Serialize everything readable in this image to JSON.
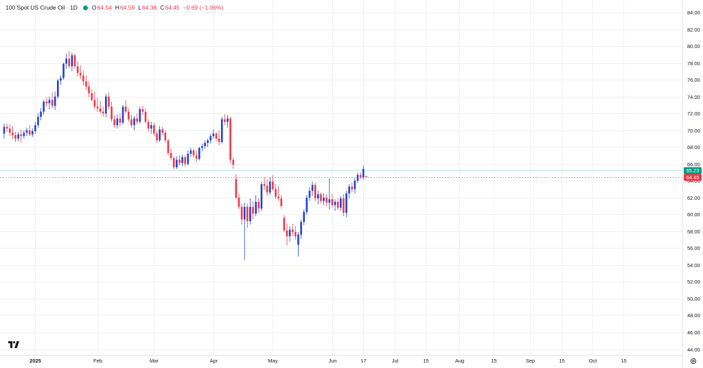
{
  "header": {
    "title": "100 Spot US Crude Oil · 1D",
    "open_label": "O",
    "open": "64.54",
    "high_label": "H",
    "high": "64.59",
    "low_label": "L",
    "low": "64.38",
    "close_label": "C",
    "close": "64.45",
    "change": "−0.69 (−1.06%)"
  },
  "colors": {
    "up": "#1e3fd8",
    "down": "#f23645",
    "grid": "#eef0f3",
    "badge_green": "#089981",
    "badge_red": "#f23645"
  },
  "icons": {
    "logo": "tradingview-logo-icon",
    "settings": "settings-gear-icon"
  },
  "chart_data": {
    "type": "candlestick",
    "y_ticks": [
      "84.00",
      "82.00",
      "80.00",
      "78.00",
      "76.00",
      "74.00",
      "72.00",
      "70.00",
      "68.00",
      "66.00",
      "64.00",
      "62.00",
      "60.00",
      "58.00",
      "56.00",
      "54.00",
      "52.00",
      "50.00",
      "48.00",
      "46.00",
      "44.00"
    ],
    "ylim": [
      43.2,
      85.3
    ],
    "x_labels": [
      {
        "label": "2025",
        "index": 11,
        "bold": true
      },
      {
        "label": "Feb",
        "index": 33
      },
      {
        "label": "Mar",
        "index": 53
      },
      {
        "label": "Apr",
        "index": 74
      },
      {
        "label": "May",
        "index": 95
      },
      {
        "label": "Jun",
        "index": 116
      },
      {
        "label": "17",
        "index": 127
      },
      {
        "label": "Jul",
        "index": 138
      },
      {
        "label": "15",
        "index": 149
      },
      {
        "label": "Aug",
        "index": 161
      },
      {
        "label": "15",
        "index": 173
      },
      {
        "label": "Sep",
        "index": 186
      },
      {
        "label": "15",
        "index": 197
      },
      {
        "label": "Oct",
        "index": 208
      },
      {
        "label": "15",
        "index": 219
      }
    ],
    "price_badges": [
      {
        "label": "65.23",
        "value": 65.23,
        "color": "green"
      },
      {
        "label": "64.45",
        "value": 64.45,
        "color": "red"
      }
    ],
    "candles": [
      [
        0,
        69.6,
        70.8,
        69.0,
        70.4
      ],
      [
        1,
        70.4,
        70.8,
        69.8,
        70.2
      ],
      [
        2,
        70.2,
        70.7,
        69.3,
        69.7
      ],
      [
        3,
        69.7,
        70.5,
        68.9,
        69.4
      ],
      [
        4,
        69.4,
        69.8,
        68.6,
        69.0
      ],
      [
        5,
        69.0,
        69.8,
        68.7,
        69.5
      ],
      [
        6,
        69.5,
        70.1,
        68.5,
        69.3
      ],
      [
        7,
        69.3,
        70.0,
        69.0,
        69.7
      ],
      [
        8,
        69.7,
        70.3,
        69.3,
        70.0
      ],
      [
        9,
        70.0,
        70.6,
        69.3,
        69.5
      ],
      [
        10,
        69.5,
        70.2,
        69.2,
        69.9
      ],
      [
        11,
        69.9,
        71.0,
        69.6,
        70.6
      ],
      [
        12,
        70.6,
        72.0,
        70.3,
        71.6
      ],
      [
        13,
        71.6,
        72.6,
        71.2,
        72.2
      ],
      [
        14,
        72.2,
        73.6,
        71.8,
        73.4
      ],
      [
        15,
        73.4,
        73.9,
        72.8,
        73.2
      ],
      [
        16,
        73.2,
        74.0,
        72.5,
        73.6
      ],
      [
        17,
        73.6,
        74.5,
        72.6,
        72.9
      ],
      [
        18,
        72.9,
        74.6,
        72.4,
        74.0
      ],
      [
        19,
        74.0,
        76.1,
        73.7,
        75.9
      ],
      [
        20,
        75.9,
        76.5,
        75.4,
        76.2
      ],
      [
        21,
        76.2,
        78.0,
        76.0,
        77.9
      ],
      [
        22,
        77.9,
        79.1,
        77.3,
        78.5
      ],
      [
        23,
        78.5,
        79.4,
        77.4,
        77.6
      ],
      [
        24,
        77.6,
        79.2,
        77.0,
        78.9
      ],
      [
        25,
        78.9,
        79.1,
        77.3,
        77.6
      ],
      [
        26,
        77.6,
        78.2,
        76.4,
        76.8
      ],
      [
        27,
        76.8,
        77.7,
        76.1,
        76.5
      ],
      [
        28,
        76.5,
        77.1,
        75.3,
        75.8
      ],
      [
        29,
        75.8,
        76.5,
        74.8,
        75.2
      ],
      [
        30,
        75.2,
        75.8,
        73.9,
        74.4
      ],
      [
        31,
        74.4,
        74.9,
        73.4,
        73.6
      ],
      [
        32,
        73.6,
        74.6,
        72.5,
        72.8
      ],
      [
        33,
        72.8,
        73.9,
        72.2,
        72.6
      ],
      [
        34,
        72.6,
        73.5,
        72.0,
        72.2
      ],
      [
        35,
        72.2,
        72.8,
        71.6,
        72.0
      ],
      [
        36,
        72.0,
        74.3,
        71.5,
        74.0
      ],
      [
        37,
        74.0,
        74.5,
        72.5,
        72.8
      ],
      [
        38,
        72.8,
        73.4,
        71.0,
        71.3
      ],
      [
        39,
        71.3,
        71.8,
        70.3,
        70.6
      ],
      [
        40,
        70.6,
        71.9,
        70.2,
        71.4
      ],
      [
        41,
        71.4,
        72.0,
        70.5,
        70.9
      ],
      [
        42,
        70.9,
        73.0,
        70.7,
        72.8
      ],
      [
        43,
        72.8,
        73.6,
        72.0,
        72.2
      ],
      [
        44,
        72.2,
        72.6,
        71.0,
        71.3
      ],
      [
        45,
        71.3,
        71.8,
        70.3,
        70.6
      ],
      [
        46,
        70.6,
        71.7,
        70.0,
        71.4
      ],
      [
        47,
        71.4,
        72.0,
        70.7,
        71.0
      ],
      [
        48,
        71.0,
        72.8,
        70.8,
        72.5
      ],
      [
        49,
        72.5,
        72.9,
        71.8,
        72.2
      ],
      [
        50,
        72.2,
        72.6,
        70.8,
        71.0
      ],
      [
        51,
        71.0,
        71.3,
        69.8,
        70.2
      ],
      [
        52,
        70.2,
        71.0,
        69.6,
        70.6
      ],
      [
        53,
        70.6,
        70.9,
        69.3,
        69.6
      ],
      [
        54,
        69.6,
        69.9,
        68.5,
        68.8
      ],
      [
        55,
        68.8,
        70.5,
        68.6,
        70.1
      ],
      [
        56,
        70.1,
        70.4,
        69.4,
        69.7
      ],
      [
        57,
        69.7,
        70.0,
        68.5,
        68.8
      ],
      [
        58,
        68.8,
        69.0,
        67.0,
        67.3
      ],
      [
        59,
        67.3,
        67.8,
        66.4,
        66.7
      ],
      [
        60,
        66.7,
        66.9,
        65.3,
        65.6
      ],
      [
        61,
        65.6,
        66.9,
        65.4,
        66.5
      ],
      [
        62,
        66.5,
        67.0,
        65.8,
        66.1
      ],
      [
        63,
        66.1,
        67.1,
        65.7,
        66.8
      ],
      [
        64,
        66.8,
        67.0,
        65.7,
        66.0
      ],
      [
        65,
        66.0,
        67.6,
        65.8,
        67.2
      ],
      [
        66,
        67.2,
        67.9,
        66.8,
        67.6
      ],
      [
        67,
        67.6,
        67.8,
        66.7,
        67.0
      ],
      [
        68,
        67.0,
        67.6,
        66.2,
        66.6
      ],
      [
        69,
        66.6,
        68.0,
        66.4,
        67.9
      ],
      [
        70,
        67.9,
        68.4,
        67.5,
        68.1
      ],
      [
        71,
        68.1,
        68.8,
        67.8,
        68.5
      ],
      [
        72,
        68.5,
        69.0,
        68.0,
        68.8
      ],
      [
        73,
        68.8,
        69.6,
        68.4,
        69.3
      ],
      [
        74,
        69.3,
        70.1,
        69.0,
        69.6
      ],
      [
        75,
        69.6,
        69.8,
        68.7,
        69.0
      ],
      [
        76,
        69.0,
        70.0,
        68.2,
        68.6
      ],
      [
        77,
        68.6,
        71.6,
        68.4,
        71.3
      ],
      [
        78,
        71.3,
        71.9,
        70.6,
        71.0
      ],
      [
        79,
        71.0,
        71.8,
        70.3,
        71.4
      ],
      [
        80,
        71.4,
        71.6,
        66.1,
        66.5
      ],
      [
        81,
        66.5,
        66.8,
        65.4,
        65.9
      ],
      [
        82,
        64.2,
        64.8,
        61.8,
        62.0
      ],
      [
        83,
        62.0,
        62.5,
        60.6,
        60.9
      ],
      [
        84,
        60.9,
        61.3,
        58.8,
        59.4
      ],
      [
        85,
        59.4,
        61.4,
        54.6,
        60.9
      ],
      [
        86,
        60.9,
        61.3,
        58.4,
        59.2
      ],
      [
        87,
        59.2,
        61.9,
        58.8,
        60.9
      ],
      [
        88,
        60.9,
        61.6,
        59.4,
        60.1
      ],
      [
        89,
        60.1,
        62.3,
        59.8,
        61.5
      ],
      [
        90,
        61.5,
        61.9,
        60.2,
        60.7
      ],
      [
        91,
        60.7,
        63.9,
        60.4,
        63.6
      ],
      [
        92,
        63.6,
        64.4,
        62.9,
        63.4
      ],
      [
        93,
        63.4,
        64.2,
        62.2,
        62.6
      ],
      [
        94,
        62.6,
        64.4,
        62.3,
        63.9
      ],
      [
        95,
        63.9,
        64.7,
        62.8,
        63.0
      ],
      [
        96,
        63.0,
        63.6,
        61.8,
        62.1
      ],
      [
        97,
        62.1,
        63.4,
        61.6,
        61.9
      ],
      [
        98,
        61.9,
        62.3,
        60.7,
        61.0
      ],
      [
        99,
        59.6,
        59.9,
        57.9,
        58.1
      ],
      [
        100,
        58.1,
        58.9,
        56.3,
        57.4
      ],
      [
        101,
        57.4,
        58.6,
        56.8,
        58.2
      ],
      [
        102,
        58.2,
        58.9,
        57.4,
        57.9
      ],
      [
        103,
        57.9,
        58.6,
        57.0,
        57.4
      ],
      [
        104,
        56.4,
        57.9,
        55.0,
        57.6
      ],
      [
        105,
        57.6,
        59.4,
        57.1,
        59.1
      ],
      [
        106,
        59.1,
        60.6,
        58.7,
        60.3
      ],
      [
        107,
        60.3,
        62.3,
        60.0,
        62.0
      ],
      [
        108,
        62.0,
        63.2,
        61.6,
        62.8
      ],
      [
        109,
        62.8,
        63.9,
        62.2,
        63.5
      ],
      [
        110,
        63.5,
        63.8,
        61.6,
        61.9
      ],
      [
        111,
        61.9,
        62.8,
        61.2,
        62.4
      ],
      [
        112,
        62.4,
        62.6,
        61.3,
        61.6
      ],
      [
        113,
        61.6,
        62.5,
        61.1,
        62.0
      ],
      [
        114,
        62.0,
        62.4,
        61.0,
        61.4
      ],
      [
        115,
        61.4,
        64.3,
        60.6,
        61.8
      ],
      [
        116,
        61.8,
        62.4,
        60.8,
        61.1
      ],
      [
        117,
        61.1,
        61.8,
        60.4,
        61.5
      ],
      [
        118,
        61.5,
        61.9,
        60.5,
        60.8
      ],
      [
        119,
        60.8,
        62.2,
        60.4,
        61.9
      ],
      [
        120,
        61.9,
        62.4,
        59.8,
        60.2
      ],
      [
        121,
        60.2,
        62.8,
        59.7,
        62.5
      ],
      [
        122,
        62.5,
        63.6,
        61.9,
        63.3
      ],
      [
        123,
        63.3,
        63.8,
        62.6,
        63.0
      ],
      [
        124,
        63.0,
        64.3,
        62.5,
        64.0
      ],
      [
        125,
        64.0,
        65.0,
        63.7,
        64.7
      ],
      [
        126,
        64.7,
        65.0,
        64.2,
        64.4
      ],
      [
        127,
        64.4,
        65.8,
        64.1,
        65.4
      ],
      [
        128,
        64.54,
        64.59,
        64.38,
        64.45
      ]
    ]
  }
}
